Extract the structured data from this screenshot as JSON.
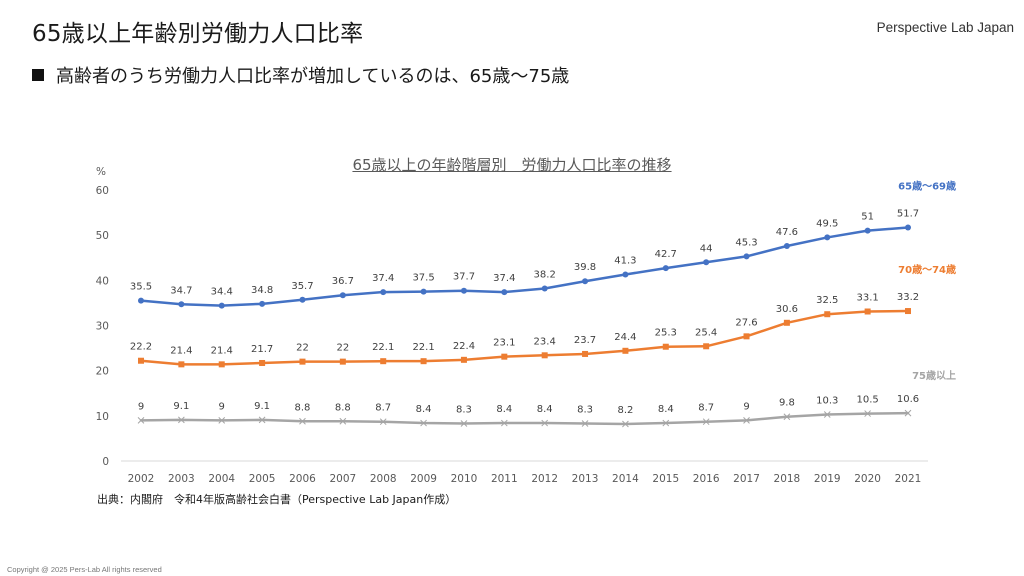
{
  "header": {
    "title": "65歳以上年齢別労働力人口比率",
    "brand": "Perspective Lab Japan",
    "bullet": "高齢者のうち労働力人口比率が増加しているのは、65歳〜75歳"
  },
  "footer": {
    "source": "出典：内閣府　令和4年版高齢社会白書（Perspective Lab Japan作成）",
    "copyright": "Copyright @ 2025 Pers-Lab All rights reserved"
  },
  "chart_data": {
    "type": "line",
    "title": "65歳以上の年齢階層別　労働力人口比率の推移",
    "xlabel": "",
    "ylabel": "%",
    "ylim": [
      0,
      60
    ],
    "yticks": [
      0,
      10,
      20,
      30,
      40,
      50,
      60
    ],
    "grid": false,
    "legend": "right-of-line-end",
    "x": [
      "2002",
      "2003",
      "2004",
      "2005",
      "2006",
      "2007",
      "2008",
      "2009",
      "2010",
      "2011",
      "2012",
      "2013",
      "2014",
      "2015",
      "2016",
      "2017",
      "2018",
      "2019",
      "2020",
      "2021"
    ],
    "series": [
      {
        "name": "65歳〜69歳",
        "color": "#4472C4",
        "marker": "circle",
        "values": [
          35.5,
          34.7,
          34.4,
          34.8,
          35.7,
          36.7,
          37.4,
          37.5,
          37.7,
          37.4,
          38.2,
          39.8,
          41.3,
          42.7,
          44,
          45.3,
          47.6,
          49.5,
          51,
          51.7
        ]
      },
      {
        "name": "70歳〜74歳",
        "color": "#ED7D31",
        "marker": "square",
        "values": [
          22.2,
          21.4,
          21.4,
          21.7,
          22,
          22,
          22.1,
          22.1,
          22.4,
          23.1,
          23.4,
          23.7,
          24.4,
          25.3,
          25.4,
          27.6,
          30.6,
          32.5,
          33.1,
          33.2
        ]
      },
      {
        "name": "75歳以上",
        "color": "#A5A5A5",
        "marker": "x",
        "values": [
          9,
          9.1,
          9,
          9.1,
          8.8,
          8.8,
          8.7,
          8.4,
          8.3,
          8.4,
          8.4,
          8.3,
          8.2,
          8.4,
          8.7,
          9,
          9.8,
          10.3,
          10.5,
          10.6
        ]
      }
    ]
  }
}
